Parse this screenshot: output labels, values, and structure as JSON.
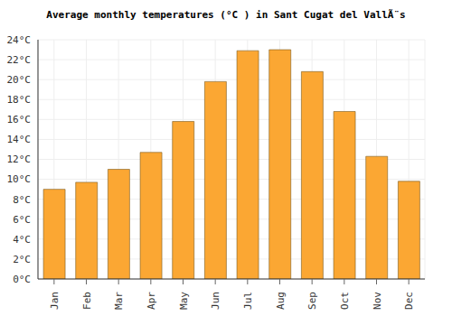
{
  "chart_data": {
    "type": "bar",
    "title": "Average monthly temperatures (°C ) in Sant Cugat del VallÃ¨s",
    "categories": [
      "Jan",
      "Feb",
      "Mar",
      "Apr",
      "May",
      "Jun",
      "Jul",
      "Aug",
      "Sep",
      "Oct",
      "Nov",
      "Dec"
    ],
    "values": [
      9.0,
      9.7,
      11.0,
      12.7,
      15.8,
      19.8,
      22.9,
      23.0,
      20.8,
      16.8,
      12.3,
      9.8
    ],
    "color": "#fba733",
    "ylim": [
      0,
      24
    ],
    "yticks": [
      {
        "value": 0,
        "label": "0°C"
      },
      {
        "value": 2,
        "label": "2°C"
      },
      {
        "value": 4,
        "label": "4°C"
      },
      {
        "value": 6,
        "label": "6°C"
      },
      {
        "value": 8,
        "label": "8°C"
      },
      {
        "value": 10,
        "label": "10°C"
      },
      {
        "value": 12,
        "label": "12°C"
      },
      {
        "value": 14,
        "label": "14°C"
      },
      {
        "value": 16,
        "label": "16°C"
      },
      {
        "value": 18,
        "label": "18°C"
      },
      {
        "value": 20,
        "label": "20°C"
      },
      {
        "value": 22,
        "label": "22°C"
      },
      {
        "value": 24,
        "label": "24°C"
      }
    ],
    "grid": true
  }
}
